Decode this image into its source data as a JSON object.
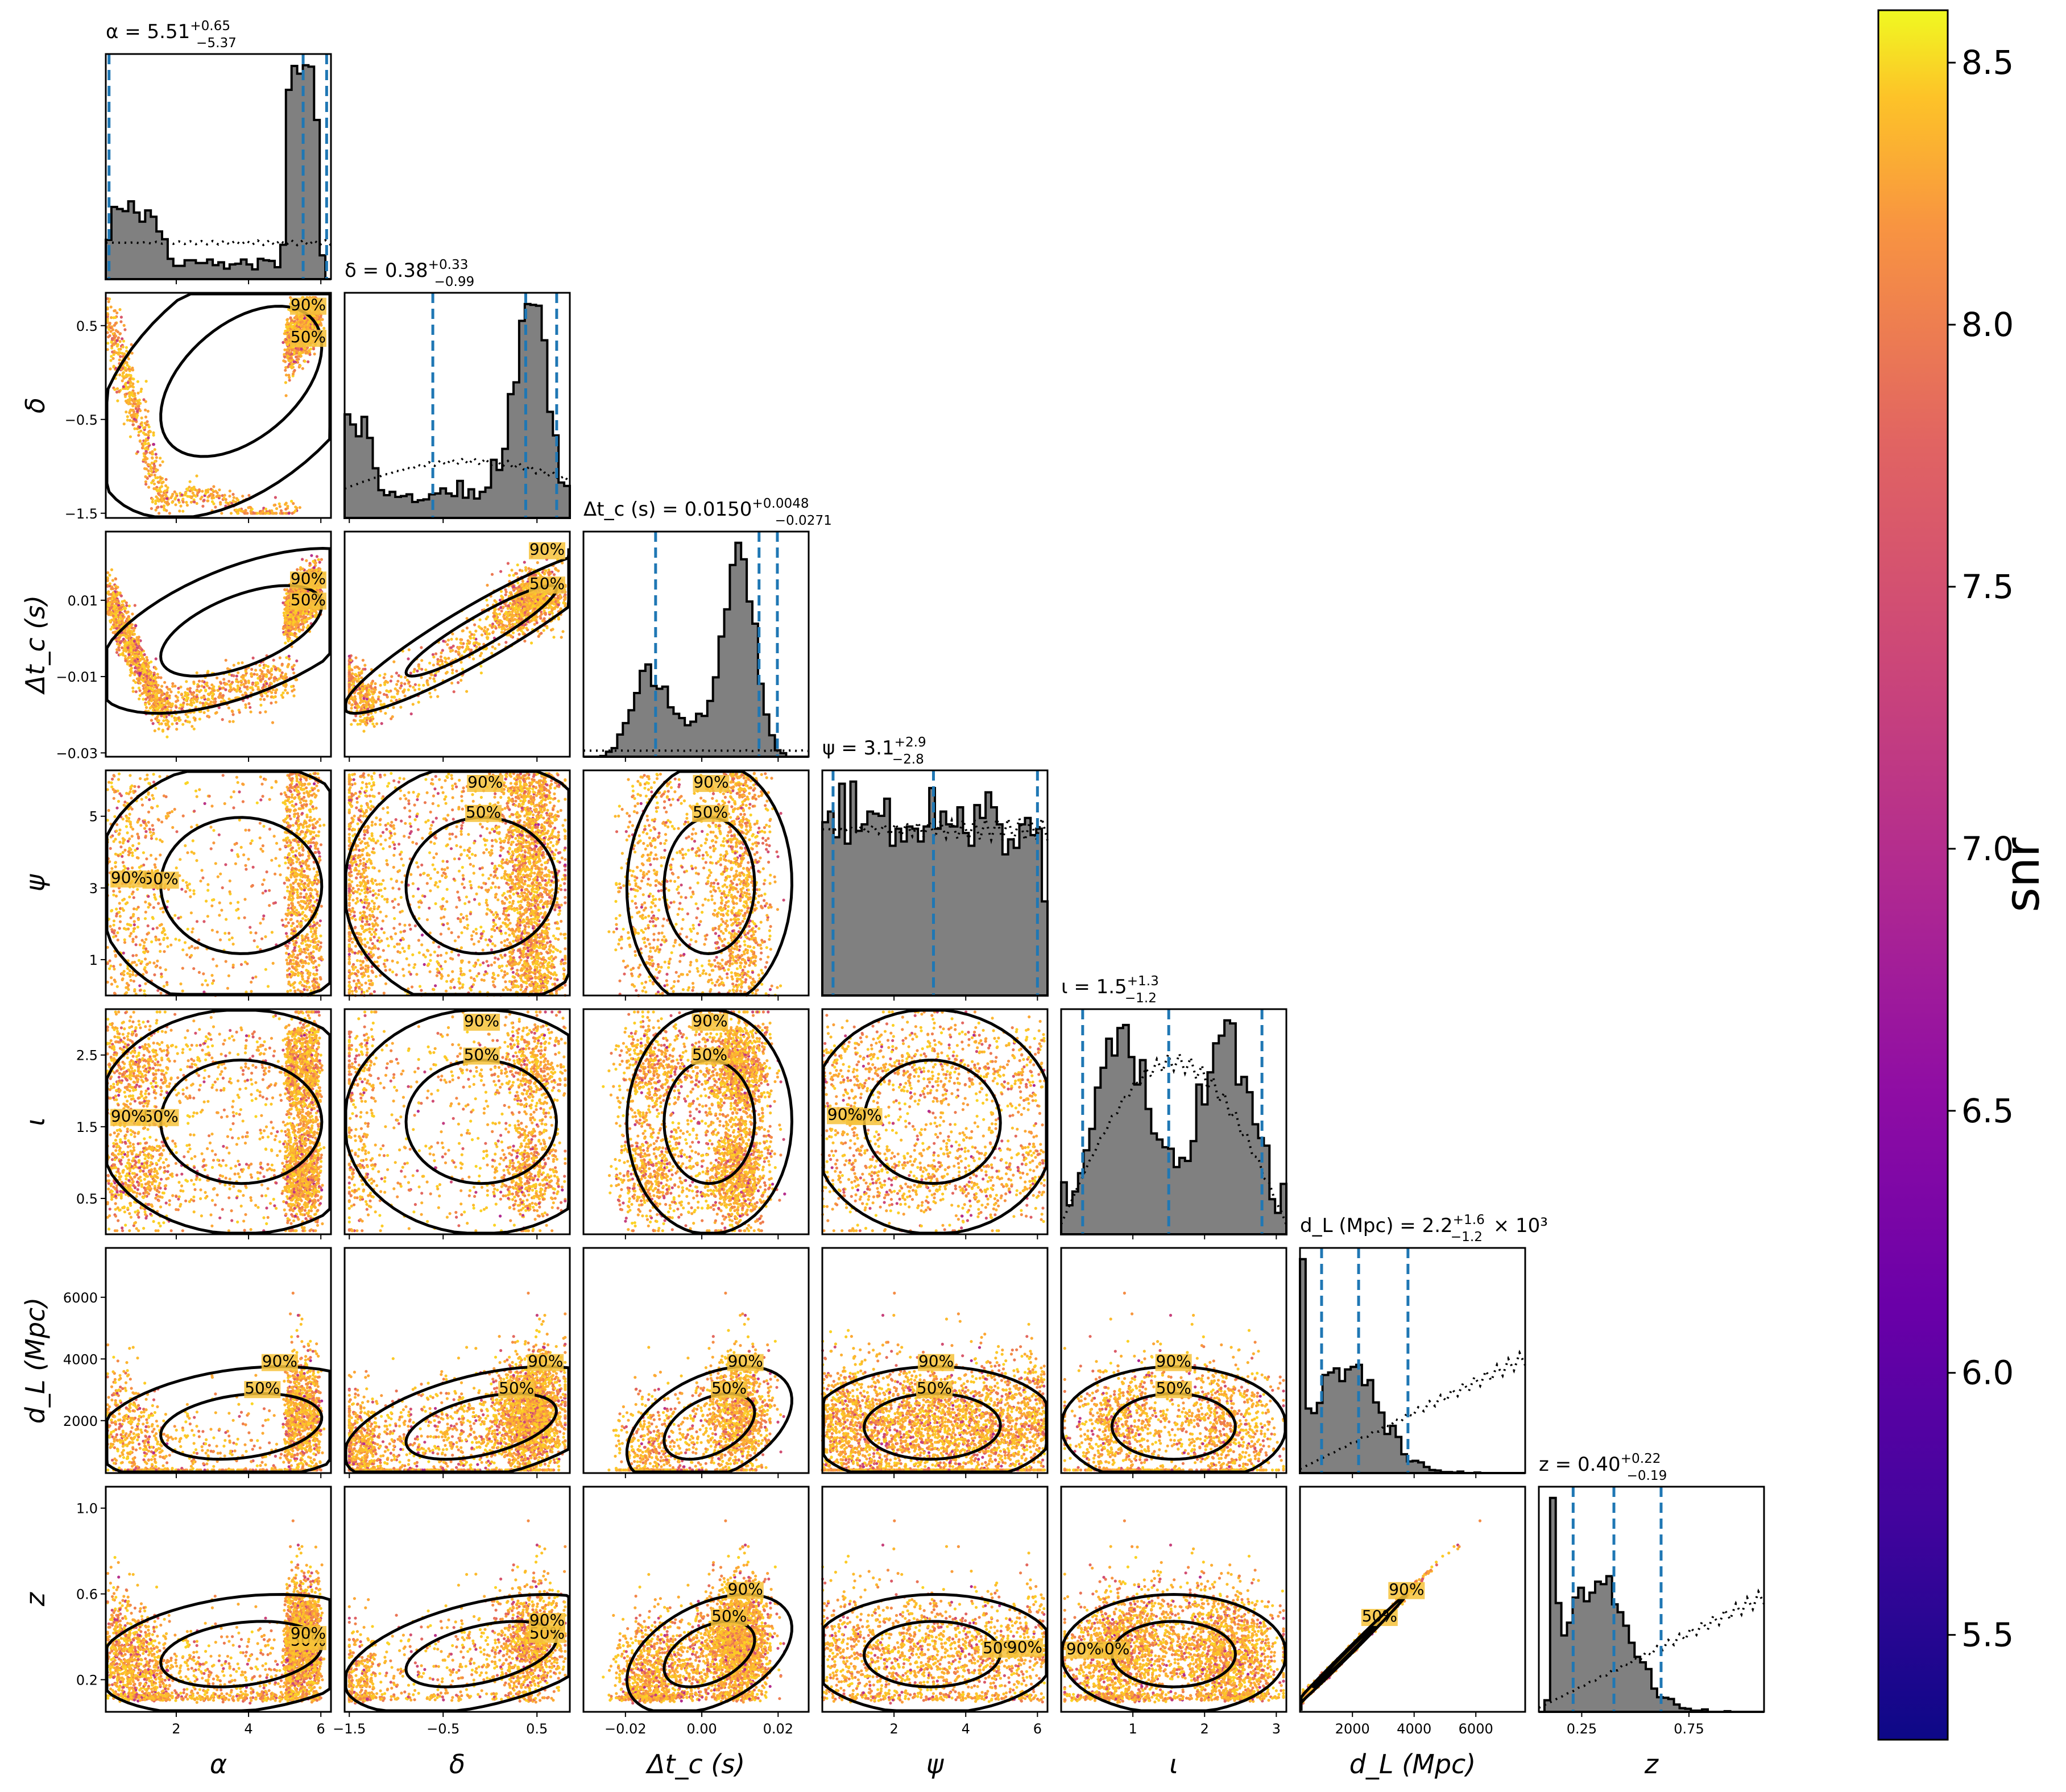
{
  "chart_data": {
    "type": "scatter",
    "kind": "corner plot (posterior samples colored by snr)",
    "grid": false,
    "parameters": [
      {
        "id": "alpha",
        "axis_label": "α",
        "title": "α = 5.51",
        "sup": "+0.65",
        "sub": "−5.37",
        "suffix": "",
        "range": [
          0.05,
          6.28
        ],
        "ticks": [
          2,
          4,
          6
        ],
        "tick_labels": [
          "2",
          "4",
          "6"
        ],
        "median": 5.51,
        "lower": 0.14,
        "upper": 6.16
      },
      {
        "id": "delta",
        "axis_label": "δ",
        "title": "δ = 0.38",
        "sup": "+0.33",
        "sub": "−0.99",
        "suffix": "",
        "range": [
          -1.55,
          0.85
        ],
        "ticks": [
          -1.5,
          -0.5,
          0.5
        ],
        "tick_labels": [
          "−1.5",
          "−0.5",
          "0.5"
        ],
        "median": 0.38,
        "lower": -0.61,
        "upper": 0.71
      },
      {
        "id": "dtc",
        "axis_label": "Δt_c (s)",
        "title": "Δt_c (s) = 0.0150",
        "sup": "+0.0048",
        "sub": "−0.0271",
        "suffix": "",
        "range": [
          -0.031,
          0.028
        ],
        "ticks": [
          -0.02,
          0.0,
          0.02
        ],
        "tick_labels": [
          "−0.02",
          "0.00",
          "0.02"
        ],
        "y_ticks": [
          -0.03,
          -0.01,
          0.01
        ],
        "y_tick_labels": [
          "−0.03",
          "−0.01",
          "0.01"
        ],
        "median": 0.015,
        "lower": -0.0121,
        "upper": 0.0198
      },
      {
        "id": "psi",
        "axis_label": "ψ",
        "title": "ψ = 3.1",
        "sup": "+2.9",
        "sub": "−2.8",
        "suffix": "",
        "range": [
          0.0,
          6.28
        ],
        "ticks": [
          2,
          4,
          6
        ],
        "tick_labels": [
          "2",
          "4",
          "6"
        ],
        "y_ticks": [
          1,
          3,
          5
        ],
        "y_tick_labels": [
          "1",
          "3",
          "5"
        ],
        "median": 3.1,
        "lower": 0.3,
        "upper": 6.0
      },
      {
        "id": "iota",
        "axis_label": "ι",
        "title": "ι = 1.5",
        "sup": "+1.3",
        "sub": "−1.2",
        "suffix": "",
        "range": [
          0.0,
          3.14
        ],
        "ticks": [
          1,
          2,
          3
        ],
        "tick_labels": [
          "1",
          "2",
          "3"
        ],
        "y_ticks": [
          0.5,
          1.5,
          2.5
        ],
        "y_tick_labels": [
          "0.5",
          "1.5",
          "2.5"
        ],
        "median": 1.5,
        "lower": 0.3,
        "upper": 2.8
      },
      {
        "id": "dl",
        "axis_label": "d_L (Mpc)",
        "title": "d_L (Mpc) = 2.2",
        "sup": "+1.6",
        "sub": "−1.2",
        "suffix": " × 10³",
        "range": [
          300,
          7600
        ],
        "ticks": [
          2000,
          4000,
          6000
        ],
        "tick_labels": [
          "2000",
          "4000",
          "6000"
        ],
        "median": 2200,
        "lower": 1000,
        "upper": 3800
      },
      {
        "id": "z",
        "axis_label": "z",
        "title": "z = 0.40",
        "sup": "+0.22",
        "sub": "−0.19",
        "suffix": "",
        "range": [
          0.05,
          1.1
        ],
        "ticks": [
          0.25,
          0.75
        ],
        "tick_labels": [
          "0.25",
          "0.75"
        ],
        "y_ticks": [
          0.2,
          0.6,
          1.0
        ],
        "y_tick_labels": [
          "0.2",
          "0.6",
          "1.0"
        ],
        "median": 0.4,
        "lower": 0.21,
        "upper": 0.62
      }
    ],
    "contour_labels": [
      "50%",
      "90%"
    ],
    "colorbar": {
      "label": "snr",
      "colormap": "plasma",
      "range": [
        5.3,
        8.6
      ],
      "ticks": [
        5.5,
        6.0,
        6.5,
        7.0,
        7.5,
        8.0,
        8.5
      ],
      "tick_labels": [
        "5.5",
        "6.0",
        "6.5",
        "7.0",
        "7.5",
        "8.0",
        "8.5"
      ]
    },
    "colors": {
      "histogram_fill": "#808080",
      "quantile_line": "#1f77b4",
      "contour": "#000000",
      "prior": "#000000"
    }
  }
}
